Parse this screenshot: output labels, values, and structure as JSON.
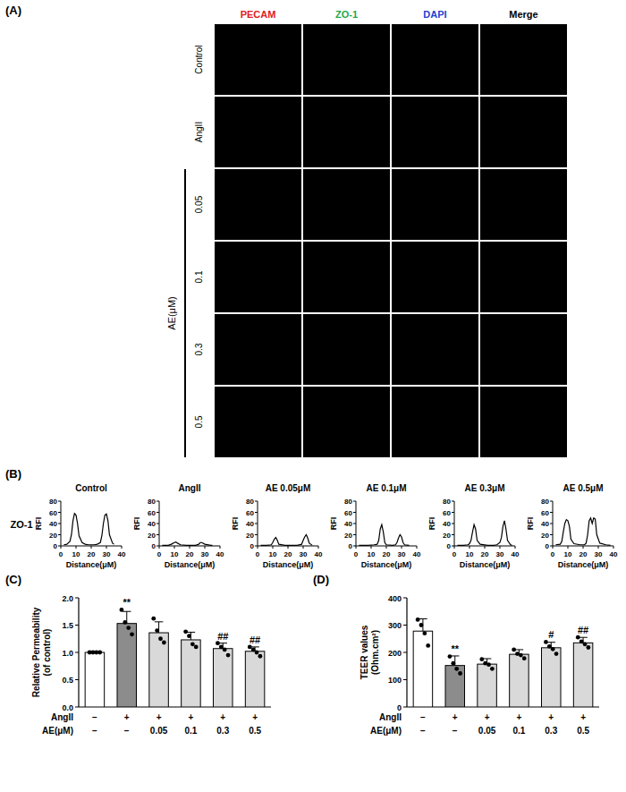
{
  "panel_labels": [
    "(A)",
    "(B)",
    "(C)",
    "(D)"
  ],
  "panel_a": {
    "channels": [
      "PECAM",
      "ZO-1",
      "DAPI",
      "Merge"
    ],
    "rows": [
      "Control",
      "AngII",
      "0.05",
      "0.1",
      "0.3",
      "0.5"
    ],
    "group_label": "AE(μM)"
  },
  "panel_b": {
    "row_label": "ZO-1"
  },
  "chart_data": [
    {
      "type": "line",
      "title": "Control",
      "xlabel": "Distance(μM)",
      "ylabel": "RFI",
      "xlim": [
        0,
        40
      ],
      "xticks": [
        0,
        10,
        20,
        30,
        40
      ],
      "ylim": [
        0,
        80
      ],
      "yticks": [
        0,
        20,
        40,
        60,
        80
      ],
      "color": "#000000",
      "x": [
        2,
        4,
        6,
        7,
        8,
        9,
        10,
        11,
        12,
        14,
        16,
        18,
        20,
        22,
        24,
        26,
        27,
        28,
        29,
        30,
        31,
        32,
        34,
        35
      ],
      "values": [
        2,
        3,
        8,
        20,
        45,
        58,
        55,
        40,
        18,
        6,
        3,
        2,
        2,
        2,
        3,
        6,
        18,
        40,
        55,
        57,
        45,
        20,
        5,
        3
      ]
    },
    {
      "type": "line",
      "title": "AngII",
      "xlabel": "Distance(μM)",
      "ylabel": "RFI",
      "xlim": [
        0,
        40
      ],
      "xticks": [
        0,
        10,
        20,
        30,
        40
      ],
      "ylim": [
        0,
        80
      ],
      "yticks": [
        0,
        20,
        40,
        60,
        80
      ],
      "color": "#000000",
      "x": [
        2,
        6,
        8,
        10,
        11,
        12,
        14,
        18,
        22,
        24,
        26,
        27,
        28,
        30,
        34,
        35
      ],
      "values": [
        1,
        1,
        3,
        6,
        7,
        5,
        2,
        1,
        1,
        1,
        3,
        6,
        6,
        3,
        1,
        1
      ]
    },
    {
      "type": "line",
      "title": "AE 0.05μM",
      "xlabel": "Distance(μM)",
      "ylabel": "RFI",
      "xlim": [
        0,
        40
      ],
      "xticks": [
        0,
        10,
        20,
        30,
        40
      ],
      "ylim": [
        0,
        80
      ],
      "yticks": [
        0,
        20,
        40,
        60,
        80
      ],
      "color": "#000000",
      "x": [
        2,
        6,
        9,
        10,
        11,
        12,
        13,
        14,
        18,
        22,
        26,
        29,
        30,
        31,
        32,
        33,
        34,
        36
      ],
      "values": [
        1,
        1,
        2,
        6,
        12,
        15,
        10,
        3,
        1,
        1,
        1,
        3,
        10,
        16,
        20,
        14,
        5,
        1
      ]
    },
    {
      "type": "line",
      "title": "AE 0.1μM",
      "xlabel": "Distance(μM)",
      "ylabel": "RFI",
      "xlim": [
        0,
        40
      ],
      "xticks": [
        0,
        10,
        20,
        30,
        40
      ],
      "ylim": [
        0,
        80
      ],
      "yticks": [
        0,
        20,
        40,
        60,
        80
      ],
      "color": "#000000",
      "x": [
        2,
        8,
        12,
        14,
        15,
        16,
        17,
        18,
        19,
        20,
        24,
        26,
        27,
        28,
        29,
        30,
        31,
        32,
        35
      ],
      "values": [
        1,
        1,
        2,
        3,
        10,
        30,
        38,
        25,
        6,
        2,
        1,
        2,
        6,
        14,
        20,
        16,
        6,
        2,
        1
      ]
    },
    {
      "type": "line",
      "title": "AE 0.3μM",
      "xlabel": "Distance(μM)",
      "ylabel": "RFI",
      "xlim": [
        0,
        40
      ],
      "xticks": [
        0,
        10,
        20,
        30,
        40
      ],
      "ylim": [
        0,
        80
      ],
      "yticks": [
        0,
        20,
        40,
        60,
        80
      ],
      "color": "#000000",
      "x": [
        2,
        6,
        9,
        10,
        11,
        12,
        13,
        14,
        15,
        17,
        22,
        26,
        28,
        30,
        31,
        32,
        33,
        34,
        35,
        37,
        38
      ],
      "values": [
        1,
        1,
        2,
        4,
        10,
        25,
        38,
        30,
        10,
        3,
        1,
        1,
        2,
        6,
        15,
        35,
        45,
        30,
        10,
        2,
        1
      ]
    },
    {
      "type": "line",
      "title": "AE 0.5μM",
      "xlabel": "Distance(μM)",
      "ylabel": "RFI",
      "xlim": [
        0,
        40
      ],
      "xticks": [
        0,
        10,
        20,
        30,
        40
      ],
      "ylim": [
        0,
        80
      ],
      "yticks": [
        0,
        20,
        40,
        60,
        80
      ],
      "color": "#000000",
      "x": [
        2,
        5,
        6,
        7,
        8,
        9,
        10,
        11,
        12,
        14,
        18,
        21,
        22,
        23,
        24,
        25,
        26,
        27,
        28,
        29,
        31,
        35,
        38
      ],
      "values": [
        2,
        3,
        8,
        25,
        40,
        47,
        45,
        35,
        12,
        4,
        2,
        2,
        5,
        20,
        45,
        50,
        40,
        50,
        48,
        20,
        5,
        2,
        1
      ]
    },
    {
      "type": "bar",
      "ylabel": [
        "Relative Permeability",
        "(of control)"
      ],
      "ylim": [
        0,
        2
      ],
      "yticks": [
        {
          "value": 0,
          "label": "0.0"
        },
        0.5,
        {
          "value": 1,
          "label": "1.0"
        },
        1.5,
        {
          "value": 2,
          "label": "2.0"
        }
      ],
      "values": [
        1.0,
        1.53,
        1.36,
        1.23,
        1.07,
        1.02
      ],
      "errors": [
        0,
        0.22,
        0.2,
        0.14,
        0.1,
        0.08
      ],
      "points": [
        [
          1,
          1,
          1,
          1
        ],
        [
          1.78,
          1.55,
          1.45,
          1.33
        ],
        [
          1.62,
          1.4,
          1.25,
          1.18
        ],
        [
          1.38,
          1.3,
          1.15,
          1.1
        ],
        [
          1.17,
          1.1,
          1.05,
          0.95
        ],
        [
          1.1,
          1.05,
          1.0,
          0.93
        ]
      ],
      "colors": [
        "#ffffff",
        "#8c8c8c",
        "#d9d9d9",
        "#d9d9d9",
        "#d9d9d9",
        "#d9d9d9"
      ],
      "x_rows": [
        {
          "label": "AngII",
          "values": [
            "−",
            "+",
            "+",
            "+",
            "+",
            "+"
          ]
        },
        {
          "label": "AE(μM)",
          "values": [
            "−",
            "−",
            "0.05",
            "0.1",
            "0.3",
            "0.5"
          ]
        }
      ],
      "annotations": [
        {
          "index": 1,
          "text": "**"
        },
        {
          "index": 4,
          "text": "##"
        },
        {
          "index": 5,
          "text": "##"
        }
      ]
    },
    {
      "type": "bar",
      "ylabel": [
        "TEER values",
        "(Ohm.cm²)"
      ],
      "ylim": [
        0,
        400
      ],
      "yticks": [
        0,
        100,
        200,
        300,
        400
      ],
      "values": [
        278,
        152,
        157,
        193,
        217,
        235
      ],
      "errors": [
        45,
        35,
        20,
        17,
        20,
        20
      ],
      "points": [
        [
          320,
          300,
          270,
          225
        ],
        [
          185,
          160,
          140,
          123
        ],
        [
          175,
          160,
          155,
          140
        ],
        [
          210,
          195,
          190,
          178
        ],
        [
          238,
          222,
          212,
          195
        ],
        [
          255,
          240,
          230,
          218
        ]
      ],
      "colors": [
        "#ffffff",
        "#8c8c8c",
        "#d9d9d9",
        "#d9d9d9",
        "#d9d9d9",
        "#d9d9d9"
      ],
      "x_rows": [
        {
          "label": "AngII",
          "values": [
            "−",
            "+",
            "+",
            "+",
            "+",
            "+"
          ]
        },
        {
          "label": "AE(μM)",
          "values": [
            "−",
            "−",
            "0.05",
            "0.1",
            "0.3",
            "0.5"
          ]
        }
      ],
      "annotations": [
        {
          "index": 1,
          "text": "**"
        },
        {
          "index": 4,
          "text": "#"
        },
        {
          "index": 5,
          "text": "##"
        }
      ]
    }
  ]
}
